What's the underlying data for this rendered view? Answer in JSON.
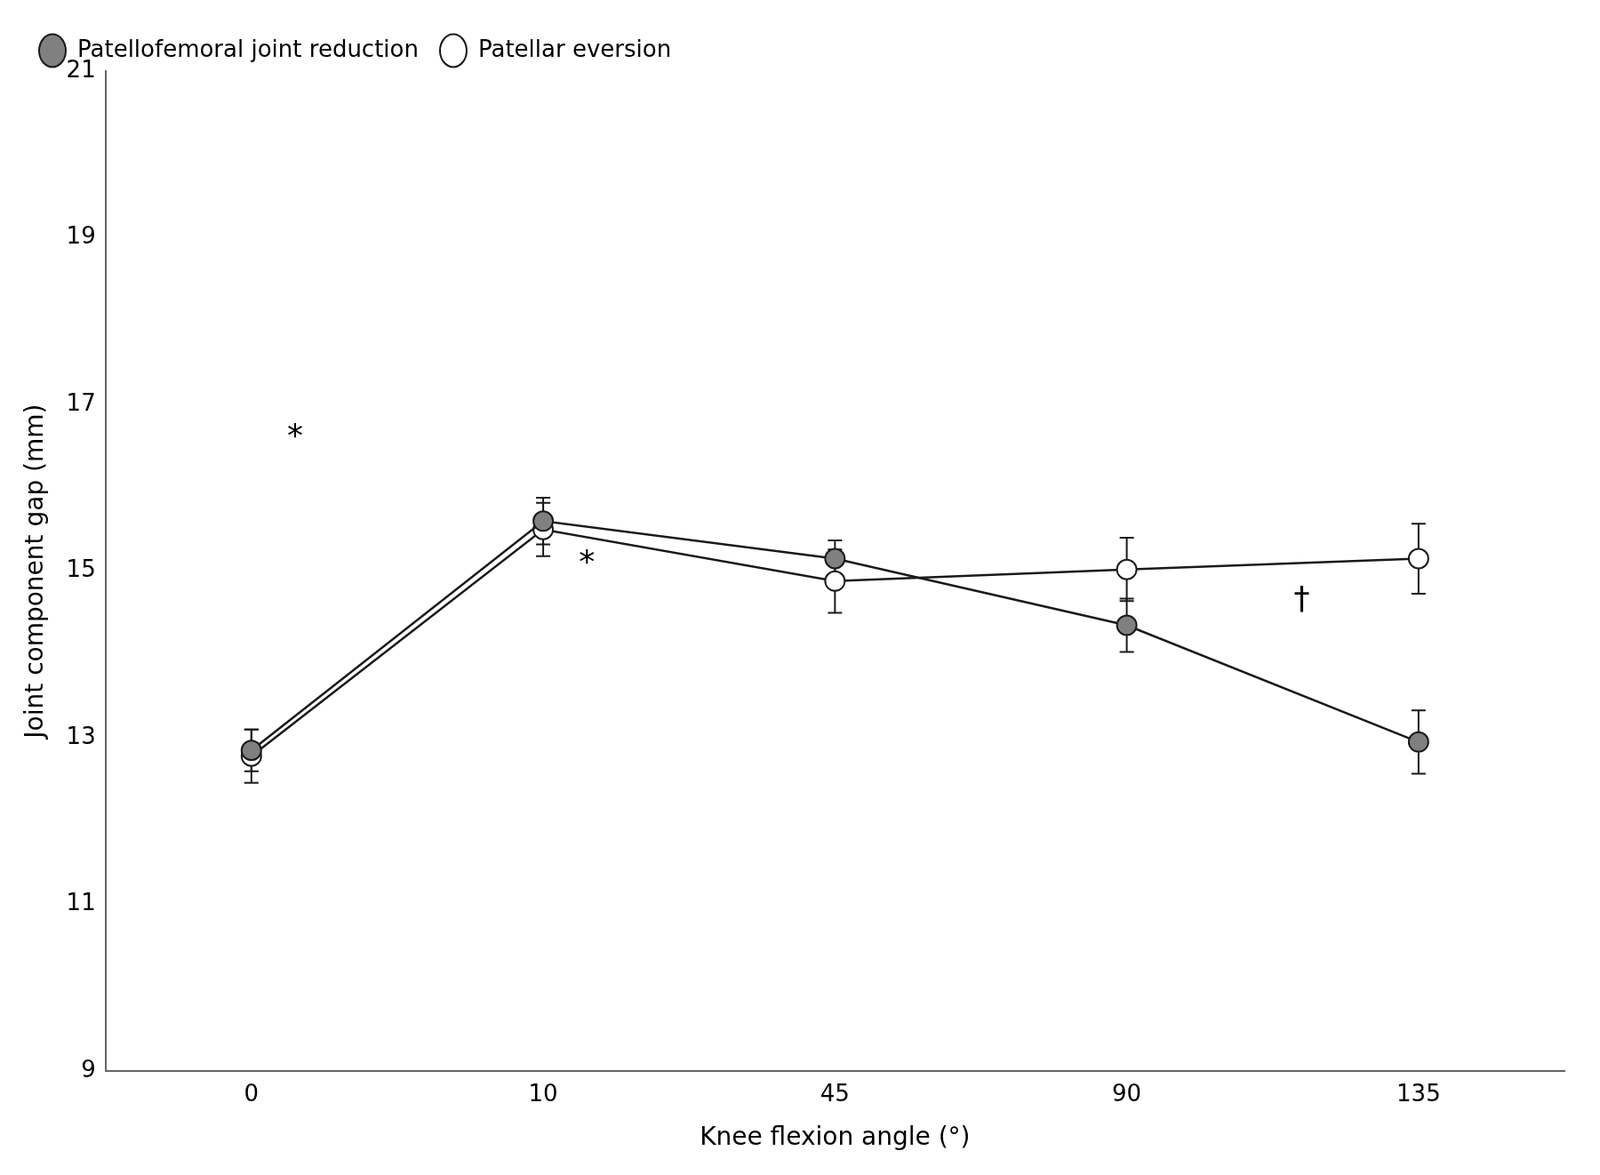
{
  "chart_data": {
    "type": "line",
    "categories": [
      "0",
      "10",
      "45",
      "90",
      "135"
    ],
    "xlabel": "Knee flexion angle (°)",
    "ylabel": "Joint component gap (mm)",
    "ylim": [
      9,
      21
    ],
    "yticks": [
      9,
      11,
      13,
      15,
      17,
      19,
      21
    ],
    "grid": false,
    "legend": "upper left",
    "color": "#1a1a1a",
    "series": [
      {
        "name": "Patellofemoral joint reduction",
        "color": "#808080",
        "marker": "circle",
        "line_style": "solid",
        "values": [
          12.85,
          15.6,
          15.15,
          14.35,
          12.95
        ],
        "errors": [
          0.25,
          0.28,
          0.22,
          0.32,
          0.38
        ]
      },
      {
        "name": "Patellar eversion",
        "color": "#ffffff",
        "marker": "circle",
        "line_style": "solid",
        "values": [
          12.78,
          15.5,
          14.88,
          15.02,
          15.15
        ],
        "errors": [
          0.32,
          0.32,
          0.38,
          0.38,
          0.42
        ]
      }
    ],
    "annotations": [
      {
        "text": "*",
        "x": 0.15,
        "y": 16.6
      },
      {
        "text": "*",
        "x": 1.15,
        "y": 15.08
      },
      {
        "text": "†",
        "x": 3.6,
        "y": 14.65
      }
    ]
  }
}
